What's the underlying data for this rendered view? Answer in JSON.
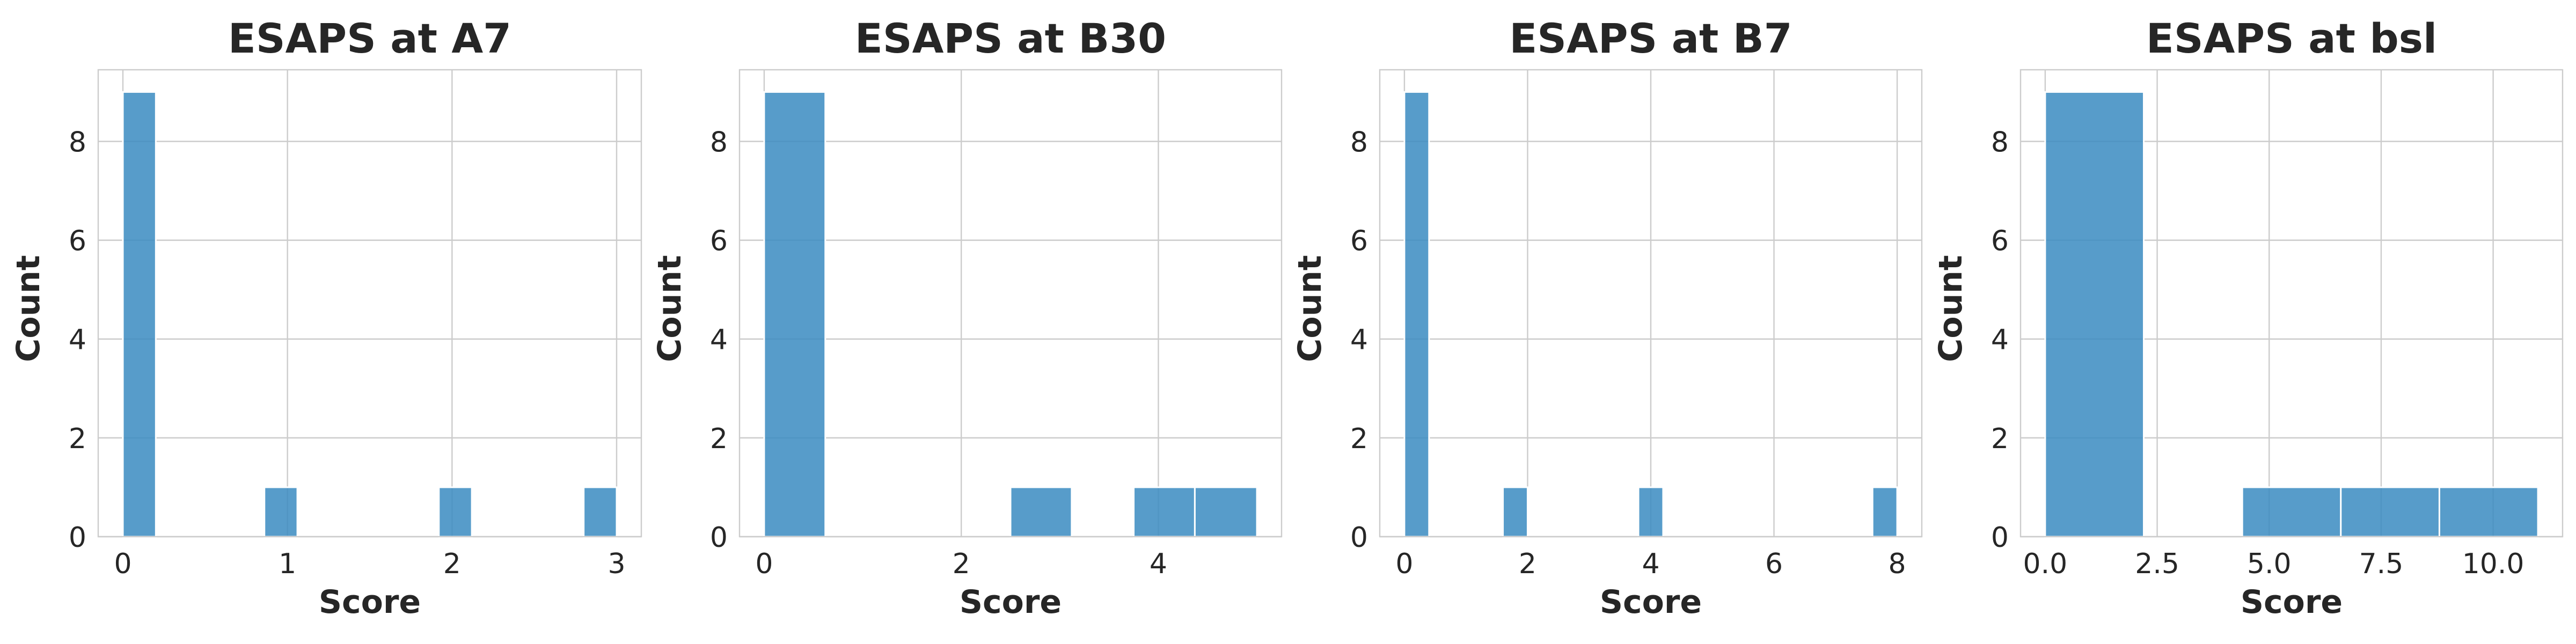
{
  "chart_data": [
    {
      "type": "bar",
      "title": "ESAPS at A7",
      "xlabel": "Score",
      "ylabel": "Count",
      "xlim": [
        -0.15,
        3.15
      ],
      "ylim": [
        0,
        9.45
      ],
      "xticks": [
        0,
        1,
        2,
        3
      ],
      "xtick_labels": [
        "0",
        "1",
        "2",
        "3"
      ],
      "yticks": [
        0,
        2,
        4,
        6,
        8
      ],
      "ytick_labels": [
        "0",
        "2",
        "4",
        "6",
        "8"
      ],
      "grid": true,
      "bins": [
        {
          "x0": 0.0,
          "x1": 0.2,
          "count": 9
        },
        {
          "x0": 0.86,
          "x1": 1.06,
          "count": 1
        },
        {
          "x0": 1.92,
          "x1": 2.12,
          "count": 1
        },
        {
          "x0": 2.8,
          "x1": 3.0,
          "count": 1
        }
      ]
    },
    {
      "type": "bar",
      "title": "ESAPS at B30",
      "xlabel": "Score",
      "ylabel": "Count",
      "xlim": [
        -0.25,
        5.25
      ],
      "ylim": [
        0,
        9.45
      ],
      "xticks": [
        0,
        2,
        4
      ],
      "xtick_labels": [
        "0",
        "2",
        "4"
      ],
      "yticks": [
        0,
        2,
        4,
        6,
        8
      ],
      "ytick_labels": [
        "0",
        "2",
        "4",
        "6",
        "8"
      ],
      "grid": true,
      "bins": [
        {
          "x0": 0.0,
          "x1": 0.62,
          "count": 9
        },
        {
          "x0": 2.5,
          "x1": 3.12,
          "count": 1
        },
        {
          "x0": 3.75,
          "x1": 4.37,
          "count": 1
        },
        {
          "x0": 4.37,
          "x1": 5.0,
          "count": 1
        }
      ]
    },
    {
      "type": "bar",
      "title": "ESAPS at B7",
      "xlabel": "Score",
      "ylabel": "Count",
      "xlim": [
        -0.4,
        8.4
      ],
      "ylim": [
        0,
        9.45
      ],
      "xticks": [
        0,
        2,
        4,
        6,
        8
      ],
      "xtick_labels": [
        "0",
        "2",
        "4",
        "6",
        "8"
      ],
      "grid": true,
      "yticks": [
        0,
        2,
        4,
        6,
        8
      ],
      "ytick_labels": [
        "0",
        "2",
        "4",
        "6",
        "8"
      ],
      "bins": [
        {
          "x0": 0.0,
          "x1": 0.4,
          "count": 9
        },
        {
          "x0": 1.6,
          "x1": 2.0,
          "count": 1
        },
        {
          "x0": 3.8,
          "x1": 4.2,
          "count": 1
        },
        {
          "x0": 7.6,
          "x1": 8.0,
          "count": 1
        }
      ]
    },
    {
      "type": "bar",
      "title": "ESAPS at bsl",
      "xlabel": "Score",
      "ylabel": "Count",
      "xlim": [
        -0.55,
        11.55
      ],
      "ylim": [
        0,
        9.45
      ],
      "xticks": [
        0.0,
        2.5,
        5.0,
        7.5,
        10.0
      ],
      "xtick_labels": [
        "0.0",
        "2.5",
        "5.0",
        "7.5",
        "10.0"
      ],
      "yticks": [
        0,
        2,
        4,
        6,
        8
      ],
      "ytick_labels": [
        "0",
        "2",
        "4",
        "6",
        "8"
      ],
      "grid": true,
      "bins": [
        {
          "x0": 0.0,
          "x1": 2.2,
          "count": 9
        },
        {
          "x0": 4.4,
          "x1": 6.6,
          "count": 1
        },
        {
          "x0": 6.6,
          "x1": 8.8,
          "count": 1
        },
        {
          "x0": 8.8,
          "x1": 11.0,
          "count": 1
        }
      ]
    }
  ]
}
